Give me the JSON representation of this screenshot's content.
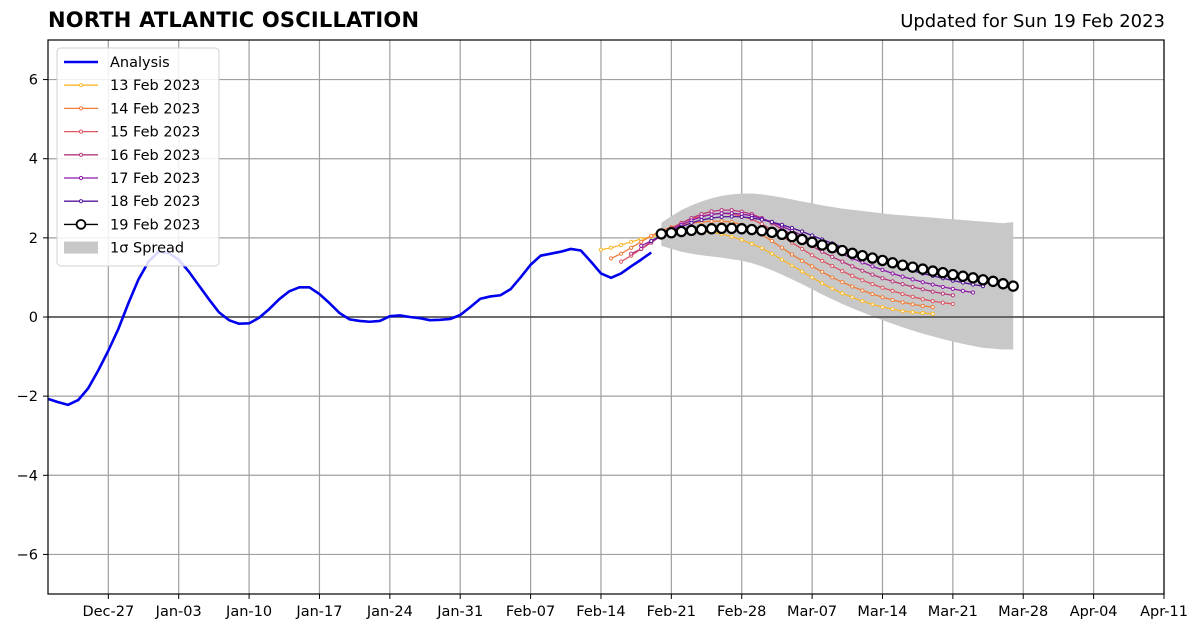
{
  "header": {
    "title": "NORTH ATLANTIC OSCILLATION",
    "updated": "Updated for Sun 19 Feb 2023"
  },
  "chart_data": {
    "type": "line",
    "title": "NORTH ATLANTIC OSCILLATION",
    "subtitle": "Updated for Sun 19 Feb 2023",
    "xlabel": "",
    "ylabel": "",
    "xlim": [
      "2022-12-21",
      "2023-04-11"
    ],
    "ylim": [
      -7,
      7
    ],
    "grid": true,
    "legend_position": "top-left",
    "x_ticks": [
      "2022-12-27",
      "2023-01-03",
      "2023-01-10",
      "2023-01-17",
      "2023-01-24",
      "2023-01-31",
      "2023-02-07",
      "2023-02-14",
      "2023-02-21",
      "2023-02-28",
      "2023-03-07",
      "2023-03-14",
      "2023-03-21",
      "2023-03-28",
      "2023-04-04",
      "2023-04-11"
    ],
    "x_tick_labels": [
      "Dec-27",
      "Jan-03",
      "Jan-10",
      "Jan-17",
      "Jan-24",
      "Jan-31",
      "Feb-07",
      "Feb-14",
      "Feb-21",
      "Feb-28",
      "Mar-07",
      "Mar-14",
      "Mar-21",
      "Mar-28",
      "Apr-04",
      "Apr-11"
    ],
    "y_ticks": [
      -6,
      -4,
      -2,
      0,
      2,
      4,
      6
    ],
    "y_tick_labels": [
      "−6",
      "−4",
      "−2",
      "0",
      "2",
      "4",
      "6"
    ],
    "analysis": {
      "name": "Analysis",
      "color": "#0000ee",
      "start": "2022-12-21",
      "values": [
        -2.07,
        -2.15,
        -2.22,
        -2.1,
        -1.8,
        -1.35,
        -0.85,
        -0.3,
        0.35,
        0.95,
        1.4,
        1.65,
        1.62,
        1.45,
        1.15,
        0.8,
        0.45,
        0.12,
        -0.08,
        -0.17,
        -0.16,
        -0.02,
        0.2,
        0.45,
        0.65,
        0.75,
        0.75,
        0.58,
        0.35,
        0.1,
        -0.06,
        -0.1,
        -0.12,
        -0.1,
        0.02,
        0.04,
        0.0,
        -0.03,
        -0.08,
        -0.07,
        -0.05,
        0.05,
        0.25,
        0.46,
        0.52,
        0.55,
        0.7,
        1.0,
        1.32,
        1.55,
        1.6,
        1.65,
        1.72,
        1.68,
        1.4,
        1.1,
        0.99,
        1.1,
        1.28,
        1.45,
        1.63
      ]
    },
    "forecasts": [
      {
        "name": "13 Feb 2023",
        "color": "#f9b82b",
        "start": "2023-02-14",
        "values": [
          1.7,
          1.75,
          1.82,
          1.9,
          1.97,
          2.03,
          2.07,
          2.1,
          2.12,
          2.15,
          2.15,
          2.14,
          2.1,
          2.03,
          1.95,
          1.85,
          1.74,
          1.6,
          1.45,
          1.3,
          1.15,
          1.0,
          0.85,
          0.72,
          0.6,
          0.5,
          0.4,
          0.32,
          0.25,
          0.2,
          0.15,
          0.12,
          0.1,
          0.08
        ]
      },
      {
        "name": "14 Feb 2023",
        "color": "#f07d3a",
        "start": "2023-02-15",
        "values": [
          1.48,
          1.6,
          1.75,
          1.9,
          2.05,
          2.18,
          2.27,
          2.33,
          2.37,
          2.4,
          2.42,
          2.42,
          2.4,
          2.33,
          2.22,
          2.08,
          1.92,
          1.75,
          1.58,
          1.42,
          1.28,
          1.14,
          1.0,
          0.88,
          0.77,
          0.67,
          0.58,
          0.5,
          0.43,
          0.37,
          0.32,
          0.28,
          0.25
        ]
      },
      {
        "name": "15 Feb 2023",
        "color": "#dc5665",
        "start": "2023-02-16",
        "values": [
          1.4,
          1.55,
          1.72,
          1.9,
          2.08,
          2.25,
          2.38,
          2.48,
          2.55,
          2.6,
          2.62,
          2.6,
          2.55,
          2.47,
          2.35,
          2.2,
          2.04,
          1.88,
          1.72,
          1.56,
          1.42,
          1.29,
          1.16,
          1.04,
          0.93,
          0.83,
          0.74,
          0.66,
          0.58,
          0.51,
          0.45,
          0.4,
          0.36,
          0.33
        ]
      },
      {
        "name": "16 Feb 2023",
        "color": "#b8377a",
        "start": "2023-02-17",
        "values": [
          1.6,
          1.72,
          1.88,
          2.05,
          2.22,
          2.37,
          2.5,
          2.6,
          2.67,
          2.7,
          2.7,
          2.66,
          2.6,
          2.5,
          2.37,
          2.22,
          2.08,
          1.93,
          1.79,
          1.65,
          1.52,
          1.4,
          1.28,
          1.17,
          1.07,
          0.98,
          0.9,
          0.83,
          0.76,
          0.7,
          0.64,
          0.59,
          0.55
        ]
      },
      {
        "name": "17 Feb 2023",
        "color": "#8c1ba8",
        "start": "2023-02-18",
        "values": [
          1.8,
          1.92,
          2.06,
          2.2,
          2.33,
          2.44,
          2.53,
          2.59,
          2.62,
          2.62,
          2.6,
          2.56,
          2.49,
          2.4,
          2.29,
          2.18,
          2.06,
          1.94,
          1.82,
          1.7,
          1.59,
          1.48,
          1.38,
          1.28,
          1.19,
          1.1,
          1.02,
          0.95,
          0.88,
          0.82,
          0.76,
          0.71,
          0.66,
          0.62
        ]
      },
      {
        "name": "18 Feb 2023",
        "color": "#54159a",
        "start": "2023-02-19",
        "values": [
          1.92,
          2.05,
          2.17,
          2.28,
          2.38,
          2.45,
          2.5,
          2.53,
          2.54,
          2.53,
          2.5,
          2.46,
          2.4,
          2.33,
          2.25,
          2.16,
          2.06,
          1.96,
          1.86,
          1.76,
          1.66,
          1.57,
          1.48,
          1.4,
          1.32,
          1.24,
          1.17,
          1.1,
          1.04,
          0.98,
          0.92,
          0.87,
          0.82,
          0.78
        ]
      },
      {
        "name": "19 Feb 2023",
        "color": "#000000",
        "start": "2023-02-20",
        "values": [
          2.1,
          2.13,
          2.16,
          2.19,
          2.21,
          2.23,
          2.24,
          2.24,
          2.23,
          2.21,
          2.18,
          2.14,
          2.09,
          2.03,
          1.96,
          1.89,
          1.82,
          1.75,
          1.68,
          1.61,
          1.55,
          1.49,
          1.43,
          1.37,
          1.31,
          1.26,
          1.21,
          1.16,
          1.12,
          1.07,
          1.03,
          0.99,
          0.94,
          0.9,
          0.84,
          0.78
        ]
      }
    ],
    "spread": {
      "name": "1σ Spread",
      "color": "#c8c8c8",
      "start": "2023-02-20",
      "upper": [
        2.38,
        2.55,
        2.7,
        2.82,
        2.92,
        3.0,
        3.06,
        3.1,
        3.12,
        3.12,
        3.1,
        3.06,
        3.02,
        2.97,
        2.92,
        2.87,
        2.82,
        2.78,
        2.74,
        2.71,
        2.68,
        2.65,
        2.62,
        2.59,
        2.57,
        2.55,
        2.53,
        2.51,
        2.49,
        2.47,
        2.45,
        2.43,
        2.41,
        2.39,
        2.37,
        2.4
      ],
      "lower": [
        1.8,
        1.72,
        1.65,
        1.6,
        1.56,
        1.53,
        1.5,
        1.46,
        1.42,
        1.36,
        1.28,
        1.18,
        1.07,
        0.95,
        0.83,
        0.7,
        0.57,
        0.45,
        0.33,
        0.22,
        0.12,
        0.02,
        -0.08,
        -0.17,
        -0.26,
        -0.34,
        -0.42,
        -0.49,
        -0.56,
        -0.62,
        -0.68,
        -0.73,
        -0.78,
        -0.8,
        -0.82,
        -0.82
      ]
    },
    "legend": [
      "Analysis",
      "13 Feb 2023",
      "14 Feb 2023",
      "15 Feb 2023",
      "16 Feb 2023",
      "17 Feb 2023",
      "18 Feb 2023",
      "19 Feb 2023",
      "1σ Spread"
    ]
  }
}
